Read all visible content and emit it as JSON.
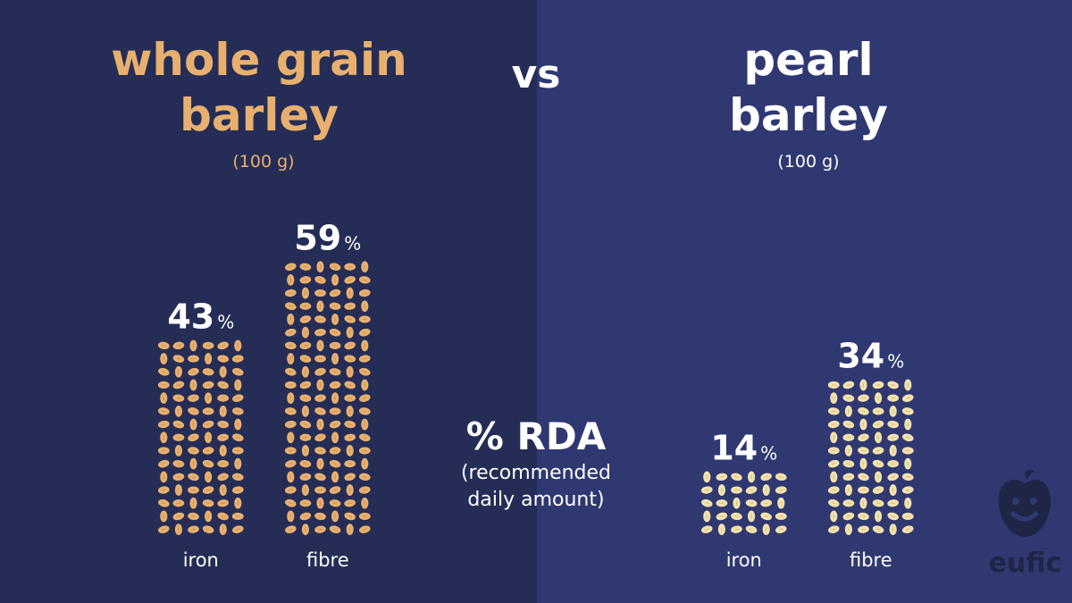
{
  "left": {
    "title_line1": "whole grain",
    "title_line2": "barley",
    "portion": "(100 g)"
  },
  "right": {
    "title_line1": "pearl",
    "title_line2": "barley",
    "portion": "(100 g)"
  },
  "vs": "vs",
  "rda": {
    "title": "% RDA",
    "sub_line1": "(recommended",
    "sub_line2": "daily amount)"
  },
  "logo": {
    "text": "eufic",
    "icon": "apple-face-icon"
  },
  "colors": {
    "left_bg": "#252d56",
    "right_bg": "#2f3871",
    "whole_grain": "#e8b06e",
    "pearl": "#f3e2ac",
    "label": "#ffffff"
  },
  "chart_data": [
    {
      "type": "bar",
      "title": "whole grain barley (100 g)",
      "categories": [
        "iron",
        "fibre"
      ],
      "values": [
        43,
        59
      ],
      "unit": "%",
      "ylabel": "% RDA"
    },
    {
      "type": "bar",
      "title": "pearl barley (100 g)",
      "categories": [
        "iron",
        "fibre"
      ],
      "values": [
        14,
        34
      ],
      "unit": "%",
      "ylabel": "% RDA"
    }
  ]
}
